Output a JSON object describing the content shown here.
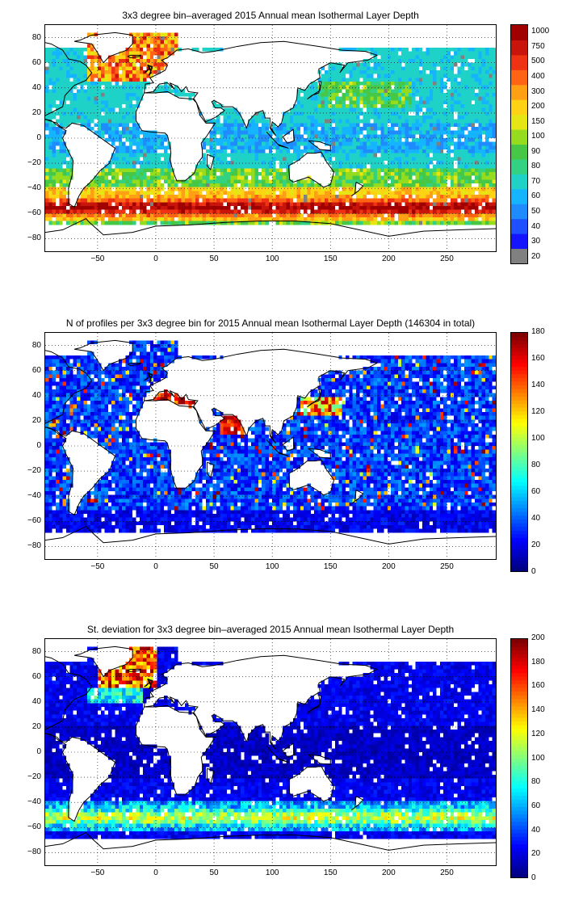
{
  "panels": [
    {
      "title": "3x3 degree bin–averaged 2015 Annual mean Isothermal Layer Depth",
      "colorbar": {
        "type": "discrete",
        "tick_labels": [
          "20",
          "30",
          "40",
          "50",
          "60",
          "70",
          "80",
          "90",
          "100",
          "150",
          "200",
          "300",
          "400",
          "500",
          "750",
          "1000"
        ],
        "colors": [
          "#1414ff",
          "#1e50ff",
          "#1e8cff",
          "#14b4ff",
          "#1ed2c8",
          "#32d282",
          "#46c846",
          "#96dc1e",
          "#e6e614",
          "#ffd214",
          "#ffa014",
          "#ff6414",
          "#f03214",
          "#c8140a",
          "#a00000"
        ],
        "missing_label": "20",
        "missing_color": "#808080"
      },
      "chart_data": {
        "type": "heatmap",
        "title": "3x3 degree bin–averaged 2015 Annual mean Isothermal Layer Depth",
        "quantity": "Annual mean Isothermal Layer Depth",
        "bin_size_degrees": 3,
        "xlim": [
          -95,
          292
        ],
        "ylim": [
          -90,
          90
        ],
        "xticks": [
          -50,
          0,
          50,
          100,
          150,
          200,
          250
        ],
        "yticks": [
          -80,
          -60,
          -40,
          -20,
          0,
          20,
          40,
          60,
          80
        ],
        "grid": true,
        "notes": "Highest values (200-500) in Southern Ocean band 45-60S and North Atlantic subpolar; lowest (20-50) in tropical oceans."
      }
    },
    {
      "title": "N of profiles per 3x3 degree bin for 2015 Annual mean Isothermal Layer Depth  (146304 in total)",
      "colorbar": {
        "type": "continuous",
        "tick_labels": [
          "0",
          "20",
          "40",
          "60",
          "80",
          "100",
          "120",
          "140",
          "160",
          "180"
        ],
        "range": [
          0,
          180
        ]
      },
      "chart_data": {
        "type": "heatmap",
        "title": "N of profiles per 3x3 degree bin for 2015 Annual mean Isothermal Layer Depth  (146304 in total)",
        "quantity": "Number of profiles per bin",
        "total_profiles": 146304,
        "bin_size_degrees": 3,
        "xlim": [
          -95,
          292
        ],
        "ylim": [
          -90,
          90
        ],
        "xticks": [
          -50,
          0,
          50,
          100,
          150,
          200,
          250
        ],
        "yticks": [
          -80,
          -60,
          -40,
          -20,
          0,
          20,
          40,
          60,
          80
        ],
        "zlim": [
          0,
          180
        ],
        "grid": true,
        "notes": "Most bins 10-40 profiles; hot spots (>150) in Mediterranean, Arabian Sea, Kuroshio and NE Pacific."
      }
    },
    {
      "title": "St. deviation for 3x3 degree bin–averaged 2015 Annual mean Isothermal Layer Depth",
      "colorbar": {
        "type": "continuous",
        "tick_labels": [
          "0",
          "20",
          "40",
          "60",
          "80",
          "100",
          "120",
          "140",
          "160",
          "180",
          "200"
        ],
        "range": [
          0,
          200
        ]
      },
      "chart_data": {
        "type": "heatmap",
        "title": "St. deviation for 3x3 degree bin–averaged 2015 Annual mean Isothermal Layer Depth",
        "quantity": "Standard deviation of Isothermal Layer Depth",
        "bin_size_degrees": 3,
        "xlim": [
          -95,
          292
        ],
        "ylim": [
          -90,
          90
        ],
        "xticks": [
          -50,
          0,
          50,
          100,
          150,
          200,
          250
        ],
        "yticks": [
          -80,
          -60,
          -40,
          -20,
          0,
          20,
          40,
          60,
          80
        ],
        "zlim": [
          0,
          200
        ],
        "grid": true,
        "notes": "Low (0-30) in tropics; high (>150) in subpolar North Atlantic and parts of Southern Ocean."
      }
    }
  ],
  "axes": {
    "x_tick_labels": [
      "−50",
      "0",
      "50",
      "100",
      "150",
      "200",
      "250"
    ],
    "y_tick_labels": [
      "80",
      "60",
      "40",
      "20",
      "0",
      "−20",
      "−40",
      "−60",
      "−80"
    ]
  }
}
